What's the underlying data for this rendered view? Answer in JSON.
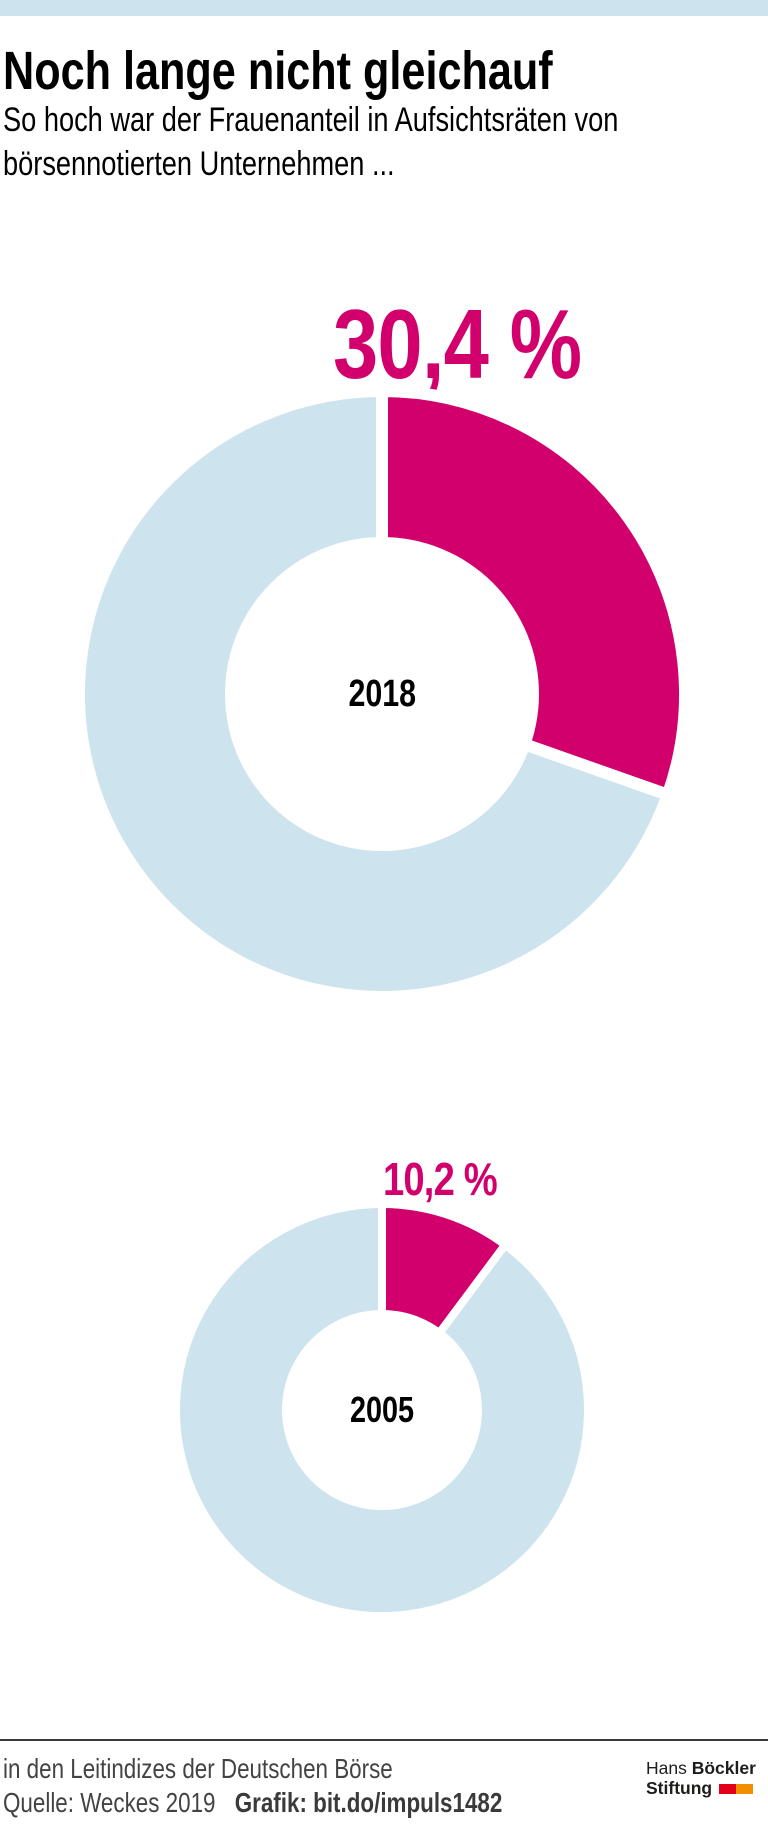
{
  "header": {
    "title": "Noch lange nicht gleichauf",
    "subtitle_line1": "So hoch war der Frauenanteil in Aufsichtsräten von",
    "subtitle_line2": "börsennotierten Unternehmen ..."
  },
  "chart_data": {
    "type": "pie",
    "variant": "donut",
    "title": "Noch lange nicht gleichauf",
    "subtitle": "So hoch war der Frauenanteil in Aufsichtsräten von börsennotierten Unternehmen ...",
    "unit": "%",
    "legend_position": "none",
    "colors": {
      "highlight": "#d1006c",
      "remainder": "#cde3ee",
      "gap": "#ffffff"
    },
    "charts": [
      {
        "center_label": "2018",
        "value": 30.4,
        "value_label": "30,4 %",
        "remainder_value": 69.6,
        "start_angle_deg": 0,
        "direction": "clockwise"
      },
      {
        "center_label": "2005",
        "value": 10.2,
        "value_label": "10,2 %",
        "remainder_value": 89.8,
        "start_angle_deg": 0,
        "direction": "clockwise"
      }
    ]
  },
  "footer": {
    "note": "in den Leitindizes der Deutschen Börse",
    "source": "Quelle: Weckes 2019",
    "credit": "Grafik: bit.do/impuls1482",
    "logo": {
      "line1_regular": "Hans",
      "line1_bold": "Böckler",
      "line2_bold": "Stiftung",
      "square_colors": [
        "#e2001a",
        "#f18f00"
      ]
    }
  }
}
